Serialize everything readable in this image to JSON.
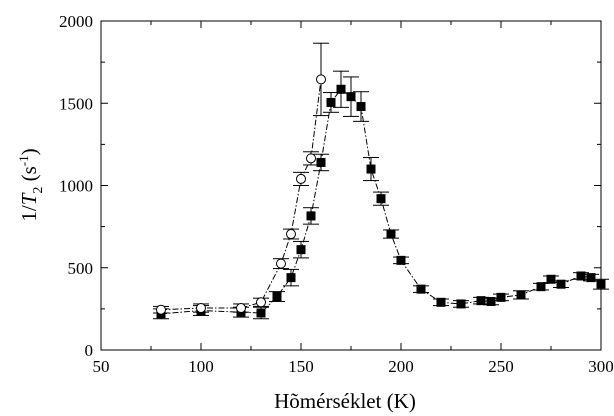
{
  "chart_data": {
    "type": "scatter",
    "xlabel": "Hõmérséklet (K)",
    "ylabel": {
      "prefix": "1/",
      "T": "T",
      "sub": "2",
      "units_open": " (s",
      "sup": "-1",
      "units_close": ")"
    },
    "xlim": [
      50,
      300
    ],
    "ylim": [
      0,
      2000
    ],
    "xticks": [
      50,
      100,
      150,
      200,
      250,
      300
    ],
    "yticks": [
      0,
      500,
      1000,
      1500,
      2000
    ],
    "grid": false,
    "series": [
      {
        "marker": "filled-square",
        "line": "dash-dot",
        "color": "#000000",
        "points": [
          {
            "x": 80,
            "y": 220,
            "err": 30
          },
          {
            "x": 100,
            "y": 240,
            "err": 30
          },
          {
            "x": 120,
            "y": 230,
            "err": 30
          },
          {
            "x": 130,
            "y": 225,
            "err": 35
          },
          {
            "x": 138,
            "y": 325,
            "err": 30
          },
          {
            "x": 145,
            "y": 440,
            "err": 50
          },
          {
            "x": 150,
            "y": 610,
            "err": 50
          },
          {
            "x": 155,
            "y": 815,
            "err": 50
          },
          {
            "x": 160,
            "y": 1140,
            "err": 50
          },
          {
            "x": 165,
            "y": 1505,
            "err": 60
          },
          {
            "x": 170,
            "y": 1585,
            "err": 110
          },
          {
            "x": 175,
            "y": 1540,
            "err": 120
          },
          {
            "x": 180,
            "y": 1480,
            "err": 90
          },
          {
            "x": 185,
            "y": 1100,
            "err": 70
          },
          {
            "x": 190,
            "y": 920,
            "err": 40
          },
          {
            "x": 195,
            "y": 705,
            "err": 25
          },
          {
            "x": 200,
            "y": 545,
            "err": 20
          },
          {
            "x": 210,
            "y": 370,
            "err": 20
          },
          {
            "x": 220,
            "y": 290,
            "err": 20
          },
          {
            "x": 230,
            "y": 280,
            "err": 20
          },
          {
            "x": 240,
            "y": 300,
            "err": 20
          },
          {
            "x": 245,
            "y": 295,
            "err": 20
          },
          {
            "x": 250,
            "y": 320,
            "err": 20
          },
          {
            "x": 260,
            "y": 335,
            "err": 25
          },
          {
            "x": 270,
            "y": 385,
            "err": 20
          },
          {
            "x": 275,
            "y": 430,
            "err": 20
          },
          {
            "x": 280,
            "y": 400,
            "err": 20
          },
          {
            "x": 290,
            "y": 450,
            "err": 20
          },
          {
            "x": 295,
            "y": 440,
            "err": 20
          },
          {
            "x": 300,
            "y": 400,
            "err": 30
          }
        ]
      },
      {
        "marker": "open-circle",
        "line": "dash-dot",
        "color": "#000000",
        "points": [
          {
            "x": 80,
            "y": 245,
            "err": 20
          },
          {
            "x": 100,
            "y": 255,
            "err": 25
          },
          {
            "x": 120,
            "y": 255,
            "err": 25
          },
          {
            "x": 130,
            "y": 290,
            "err": 25
          },
          {
            "x": 140,
            "y": 525,
            "err": 30
          },
          {
            "x": 145,
            "y": 705,
            "err": 30
          },
          {
            "x": 150,
            "y": 1040,
            "err": 40
          },
          {
            "x": 155,
            "y": 1165,
            "err": 40
          },
          {
            "x": 160,
            "y": 1645,
            "err": 220
          }
        ]
      }
    ]
  }
}
